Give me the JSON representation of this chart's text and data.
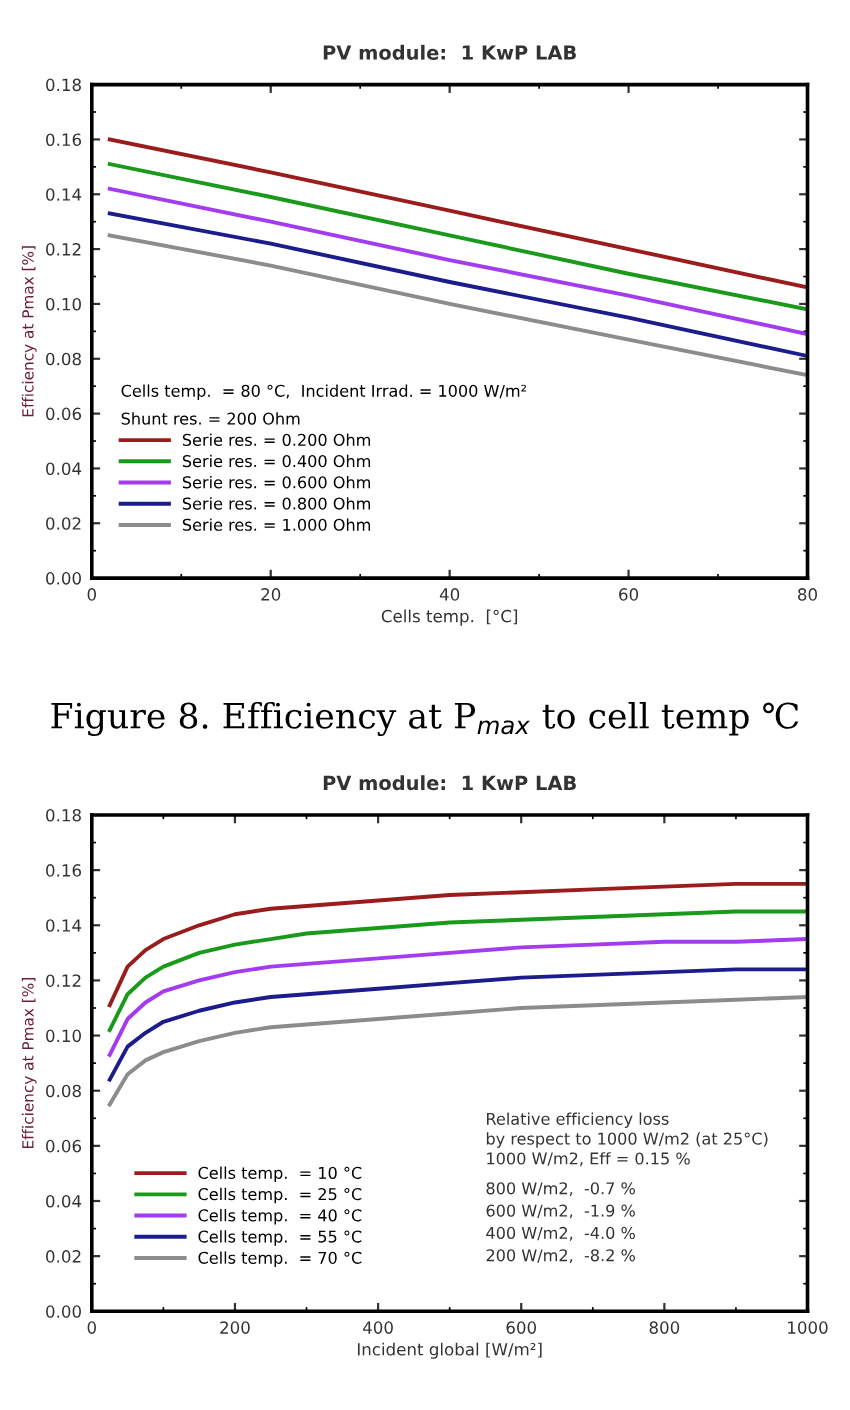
{
  "chart_data": [
    {
      "type": "line",
      "title": "PV module:  1 KwP LAB",
      "xlabel": "Cells temp.  [°C]",
      "ylabel": "Efficiency at Pmax [%]",
      "legend_title": "Cells temp.  = 80 °C,  Incident Irrad. = 1000 W/m²\nShunt res. = 200 Ohm",
      "annotations": [
        "Figure 8. Efficiency at P$_{max}$ to cell temp ℃"
      ],
      "x": [
        2,
        20,
        40,
        60,
        80
      ],
      "series": [
        {
          "name": "Serie res. = 0.200 Ohm",
          "color": "#9b1c1c",
          "values": [
            0.16,
            0.148,
            0.134,
            0.12,
            0.106
          ]
        },
        {
          "name": "Serie res. = 0.400 Ohm",
          "color": "#1a9a1a",
          "values": [
            0.151,
            0.139,
            0.125,
            0.111,
            0.098
          ]
        },
        {
          "name": "Serie res. = 0.600 Ohm",
          "color": "#a33bf0",
          "values": [
            0.142,
            0.13,
            0.116,
            0.103,
            0.089
          ]
        },
        {
          "name": "Serie res. = 0.800 Ohm",
          "color": "#1c1c8c",
          "values": [
            0.133,
            0.122,
            0.108,
            0.095,
            0.081
          ]
        },
        {
          "name": "Serie res. = 1.000 Ohm",
          "color": "#8c8c8c",
          "values": [
            0.125,
            0.114,
            0.1,
            0.087,
            0.074
          ]
        }
      ],
      "xlim": [
        0,
        80
      ],
      "xticks": [
        0,
        20,
        40,
        60,
        80
      ],
      "ylim": [
        0,
        0.18
      ],
      "yticks": [
        {
          "value": 0,
          "label": "0.00"
        },
        {
          "value": 0.02,
          "label": "0.02"
        },
        {
          "value": 0.04,
          "label": "0.04"
        },
        {
          "value": 0.06,
          "label": "0.06"
        },
        {
          "value": 0.08,
          "label": "0.08"
        },
        {
          "value": 0.1,
          "label": "0.10"
        },
        {
          "value": 0.12,
          "label": "0.12"
        },
        {
          "value": 0.14,
          "label": "0.14"
        },
        {
          "value": 0.16,
          "label": "0.16"
        },
        {
          "value": 0.18,
          "label": "0.18"
        }
      ],
      "grid": false,
      "legend": "bottom left"
    },
    {
      "type": "line",
      "title": "PV module:  1 KwP LAB",
      "xlabel": "Incident global [W/m²]",
      "ylabel": "Efficiency at Pmax [%]",
      "annotations": [
        "Relative efficiency loss",
        "by respect to 1000 W/m2 (at 25°C)",
        "1000 W/m2, Eff = 0.15 %",
        "800 W/m2,  -0.7 %",
        "600 W/m2,  -1.9 %",
        "400 W/m2,  -4.0 %",
        "200 W/m2,  -8.2 %"
      ],
      "x": [
        25,
        50,
        75,
        100,
        150,
        200,
        250,
        300,
        400,
        500,
        600,
        700,
        800,
        900,
        1000
      ],
      "series": [
        {
          "name": "Cells temp.  = 10 °C",
          "color": "#9b1c1c",
          "values": [
            0.111,
            0.125,
            0.131,
            0.135,
            0.14,
            0.144,
            0.146,
            0.147,
            0.149,
            0.151,
            0.152,
            0.153,
            0.154,
            0.155,
            0.155
          ]
        },
        {
          "name": "Cells temp.  = 25 °C",
          "color": "#1a9a1a",
          "values": [
            0.102,
            0.115,
            0.121,
            0.125,
            0.13,
            0.133,
            0.135,
            0.137,
            0.139,
            0.141,
            0.142,
            0.143,
            0.144,
            0.145,
            0.145
          ]
        },
        {
          "name": "Cells temp.  = 40 °C",
          "color": "#a33bf0",
          "values": [
            0.093,
            0.106,
            0.112,
            0.116,
            0.12,
            0.123,
            0.125,
            0.126,
            0.128,
            0.13,
            0.132,
            0.133,
            0.134,
            0.134,
            0.135
          ]
        },
        {
          "name": "Cells temp.  = 55 °C",
          "color": "#1c1c8c",
          "values": [
            0.084,
            0.096,
            0.101,
            0.105,
            0.109,
            0.112,
            0.114,
            0.115,
            0.117,
            0.119,
            0.121,
            0.122,
            0.123,
            0.124,
            0.124
          ]
        },
        {
          "name": "Cells temp.  = 70 °C",
          "color": "#8c8c8c",
          "values": [
            0.075,
            0.086,
            0.091,
            0.094,
            0.098,
            0.101,
            0.103,
            0.104,
            0.106,
            0.108,
            0.11,
            0.111,
            0.112,
            0.113,
            0.114
          ]
        }
      ],
      "xlim": [
        0,
        1000
      ],
      "xticks": [
        0,
        200,
        400,
        600,
        800,
        1000
      ],
      "ylim": [
        0,
        0.18
      ],
      "yticks": [
        {
          "value": 0,
          "label": "0.00"
        },
        {
          "value": 0.02,
          "label": "0.02"
        },
        {
          "value": 0.04,
          "label": "0.04"
        },
        {
          "value": 0.06,
          "label": "0.06"
        },
        {
          "value": 0.08,
          "label": "0.08"
        },
        {
          "value": 0.1,
          "label": "0.10"
        },
        {
          "value": 0.12,
          "label": "0.12"
        },
        {
          "value": 0.14,
          "label": "0.14"
        },
        {
          "value": 0.16,
          "label": "0.16"
        },
        {
          "value": 0.18,
          "label": "0.18"
        }
      ],
      "grid": false,
      "legend": "bottom"
    }
  ]
}
